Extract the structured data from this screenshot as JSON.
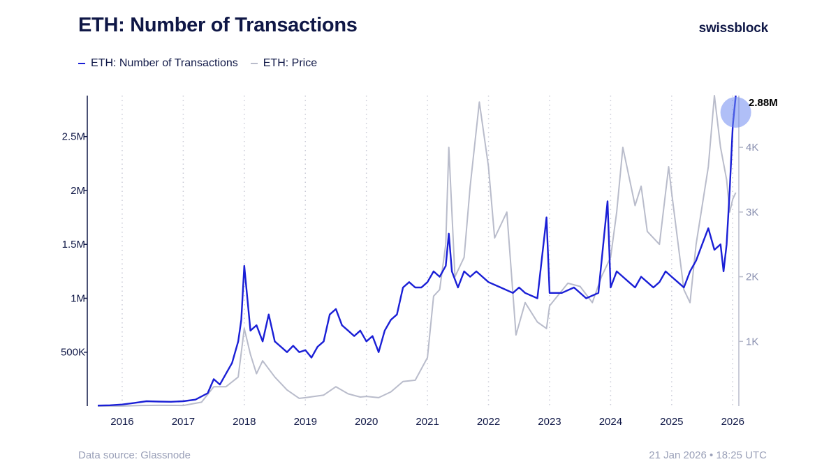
{
  "header": {
    "title": "ETH: Number of Transactions",
    "brand": "swissblock"
  },
  "legend": [
    {
      "label": "ETH: Number of Transactions",
      "color": "#1a1fd6"
    },
    {
      "label": "ETH: Price",
      "color": "#b9bccb"
    }
  ],
  "footer": {
    "source_label": "Data source:",
    "source_name": "Glassnode",
    "timestamp": "21 Jan 2026 • 18:25 UTC"
  },
  "chart_data": {
    "type": "line",
    "x_ticks": [
      "2016",
      "2017",
      "2018",
      "2019",
      "2020",
      "2021",
      "2022",
      "2023",
      "2024",
      "2025",
      "2026"
    ],
    "y_left_ticks": [
      {
        "value": 500000,
        "label": "500K"
      },
      {
        "value": 1000000,
        "label": "1M"
      },
      {
        "value": 1500000,
        "label": "1.5M"
      },
      {
        "value": 2000000,
        "label": "2M"
      },
      {
        "value": 2500000,
        "label": "2.5M"
      }
    ],
    "y_right_ticks": [
      {
        "value": 1000,
        "label": "1K"
      },
      {
        "value": 2000,
        "label": "2K"
      },
      {
        "value": 3000,
        "label": "3K"
      },
      {
        "value": 4000,
        "label": "4K"
      }
    ],
    "ylim_left": [
      0,
      2880000
    ],
    "ylim_right": [
      0,
      4800
    ],
    "xlim": [
      2015.6,
      2026.1
    ],
    "grid": "vertical-dotted",
    "callout": {
      "label": "2.88M",
      "value": 2880000,
      "x": 2026.05
    },
    "series": [
      {
        "name": "ETH: Number of Transactions",
        "axis": "left",
        "color": "#1a1fd6",
        "points": [
          [
            2015.6,
            5000
          ],
          [
            2015.8,
            8000
          ],
          [
            2016.0,
            15000
          ],
          [
            2016.2,
            30000
          ],
          [
            2016.4,
            45000
          ],
          [
            2016.6,
            42000
          ],
          [
            2016.8,
            40000
          ],
          [
            2017.0,
            45000
          ],
          [
            2017.2,
            60000
          ],
          [
            2017.4,
            120000
          ],
          [
            2017.5,
            250000
          ],
          [
            2017.6,
            200000
          ],
          [
            2017.7,
            300000
          ],
          [
            2017.8,
            400000
          ],
          [
            2017.9,
            600000
          ],
          [
            2017.95,
            800000
          ],
          [
            2018.0,
            1300000
          ],
          [
            2018.05,
            1000000
          ],
          [
            2018.1,
            700000
          ],
          [
            2018.2,
            750000
          ],
          [
            2018.3,
            600000
          ],
          [
            2018.4,
            850000
          ],
          [
            2018.5,
            600000
          ],
          [
            2018.6,
            550000
          ],
          [
            2018.7,
            500000
          ],
          [
            2018.8,
            560000
          ],
          [
            2018.9,
            500000
          ],
          [
            2019.0,
            520000
          ],
          [
            2019.1,
            450000
          ],
          [
            2019.2,
            550000
          ],
          [
            2019.3,
            600000
          ],
          [
            2019.4,
            850000
          ],
          [
            2019.5,
            900000
          ],
          [
            2019.6,
            750000
          ],
          [
            2019.7,
            700000
          ],
          [
            2019.8,
            650000
          ],
          [
            2019.9,
            700000
          ],
          [
            2020.0,
            600000
          ],
          [
            2020.1,
            650000
          ],
          [
            2020.2,
            500000
          ],
          [
            2020.3,
            700000
          ],
          [
            2020.4,
            800000
          ],
          [
            2020.5,
            850000
          ],
          [
            2020.6,
            1100000
          ],
          [
            2020.7,
            1150000
          ],
          [
            2020.8,
            1100000
          ],
          [
            2020.9,
            1100000
          ],
          [
            2021.0,
            1150000
          ],
          [
            2021.1,
            1250000
          ],
          [
            2021.2,
            1200000
          ],
          [
            2021.3,
            1300000
          ],
          [
            2021.35,
            1600000
          ],
          [
            2021.4,
            1250000
          ],
          [
            2021.5,
            1100000
          ],
          [
            2021.6,
            1250000
          ],
          [
            2021.7,
            1200000
          ],
          [
            2021.8,
            1250000
          ],
          [
            2021.9,
            1200000
          ],
          [
            2022.0,
            1150000
          ],
          [
            2022.2,
            1100000
          ],
          [
            2022.4,
            1050000
          ],
          [
            2022.5,
            1100000
          ],
          [
            2022.6,
            1050000
          ],
          [
            2022.8,
            1000000
          ],
          [
            2022.95,
            1750000
          ],
          [
            2023.0,
            1050000
          ],
          [
            2023.2,
            1050000
          ],
          [
            2023.4,
            1100000
          ],
          [
            2023.6,
            1000000
          ],
          [
            2023.8,
            1050000
          ],
          [
            2023.95,
            1900000
          ],
          [
            2024.0,
            1100000
          ],
          [
            2024.1,
            1250000
          ],
          [
            2024.2,
            1200000
          ],
          [
            2024.3,
            1150000
          ],
          [
            2024.4,
            1100000
          ],
          [
            2024.5,
            1200000
          ],
          [
            2024.6,
            1150000
          ],
          [
            2024.7,
            1100000
          ],
          [
            2024.8,
            1150000
          ],
          [
            2024.9,
            1250000
          ],
          [
            2025.0,
            1200000
          ],
          [
            2025.1,
            1150000
          ],
          [
            2025.2,
            1100000
          ],
          [
            2025.3,
            1250000
          ],
          [
            2025.4,
            1350000
          ],
          [
            2025.5,
            1500000
          ],
          [
            2025.6,
            1650000
          ],
          [
            2025.7,
            1450000
          ],
          [
            2025.8,
            1500000
          ],
          [
            2025.85,
            1250000
          ],
          [
            2025.9,
            1500000
          ],
          [
            2025.95,
            2000000
          ],
          [
            2026.0,
            2600000
          ],
          [
            2026.05,
            2880000
          ]
        ]
      },
      {
        "name": "ETH: Price",
        "axis": "right",
        "color": "#b9bccb",
        "points": [
          [
            2015.6,
            1
          ],
          [
            2016.0,
            1
          ],
          [
            2016.3,
            10
          ],
          [
            2016.6,
            12
          ],
          [
            2017.0,
            10
          ],
          [
            2017.3,
            60
          ],
          [
            2017.5,
            300
          ],
          [
            2017.7,
            300
          ],
          [
            2017.9,
            450
          ],
          [
            2018.0,
            1200
          ],
          [
            2018.1,
            800
          ],
          [
            2018.2,
            500
          ],
          [
            2018.3,
            700
          ],
          [
            2018.5,
            450
          ],
          [
            2018.7,
            250
          ],
          [
            2018.9,
            120
          ],
          [
            2019.0,
            130
          ],
          [
            2019.3,
            170
          ],
          [
            2019.5,
            300
          ],
          [
            2019.7,
            190
          ],
          [
            2019.9,
            140
          ],
          [
            2020.0,
            150
          ],
          [
            2020.2,
            130
          ],
          [
            2020.4,
            220
          ],
          [
            2020.6,
            380
          ],
          [
            2020.8,
            400
          ],
          [
            2021.0,
            750
          ],
          [
            2021.1,
            1700
          ],
          [
            2021.2,
            1800
          ],
          [
            2021.3,
            2500
          ],
          [
            2021.35,
            4000
          ],
          [
            2021.45,
            2000
          ],
          [
            2021.6,
            2300
          ],
          [
            2021.7,
            3400
          ],
          [
            2021.85,
            4700
          ],
          [
            2022.0,
            3700
          ],
          [
            2022.1,
            2600
          ],
          [
            2022.3,
            3000
          ],
          [
            2022.45,
            1100
          ],
          [
            2022.6,
            1600
          ],
          [
            2022.8,
            1300
          ],
          [
            2022.95,
            1200
          ],
          [
            2023.0,
            1550
          ],
          [
            2023.3,
            1900
          ],
          [
            2023.5,
            1850
          ],
          [
            2023.7,
            1600
          ],
          [
            2023.85,
            2000
          ],
          [
            2024.0,
            2300
          ],
          [
            2024.1,
            3000
          ],
          [
            2024.2,
            4000
          ],
          [
            2024.4,
            3100
          ],
          [
            2024.5,
            3400
          ],
          [
            2024.6,
            2700
          ],
          [
            2024.8,
            2500
          ],
          [
            2024.95,
            3700
          ],
          [
            2025.0,
            3300
          ],
          [
            2025.2,
            1800
          ],
          [
            2025.3,
            1600
          ],
          [
            2025.4,
            2500
          ],
          [
            2025.6,
            3700
          ],
          [
            2025.7,
            4800
          ],
          [
            2025.8,
            4000
          ],
          [
            2025.9,
            3500
          ],
          [
            2025.95,
            3000
          ],
          [
            2026.0,
            3200
          ],
          [
            2026.05,
            3300
          ]
        ]
      }
    ]
  }
}
